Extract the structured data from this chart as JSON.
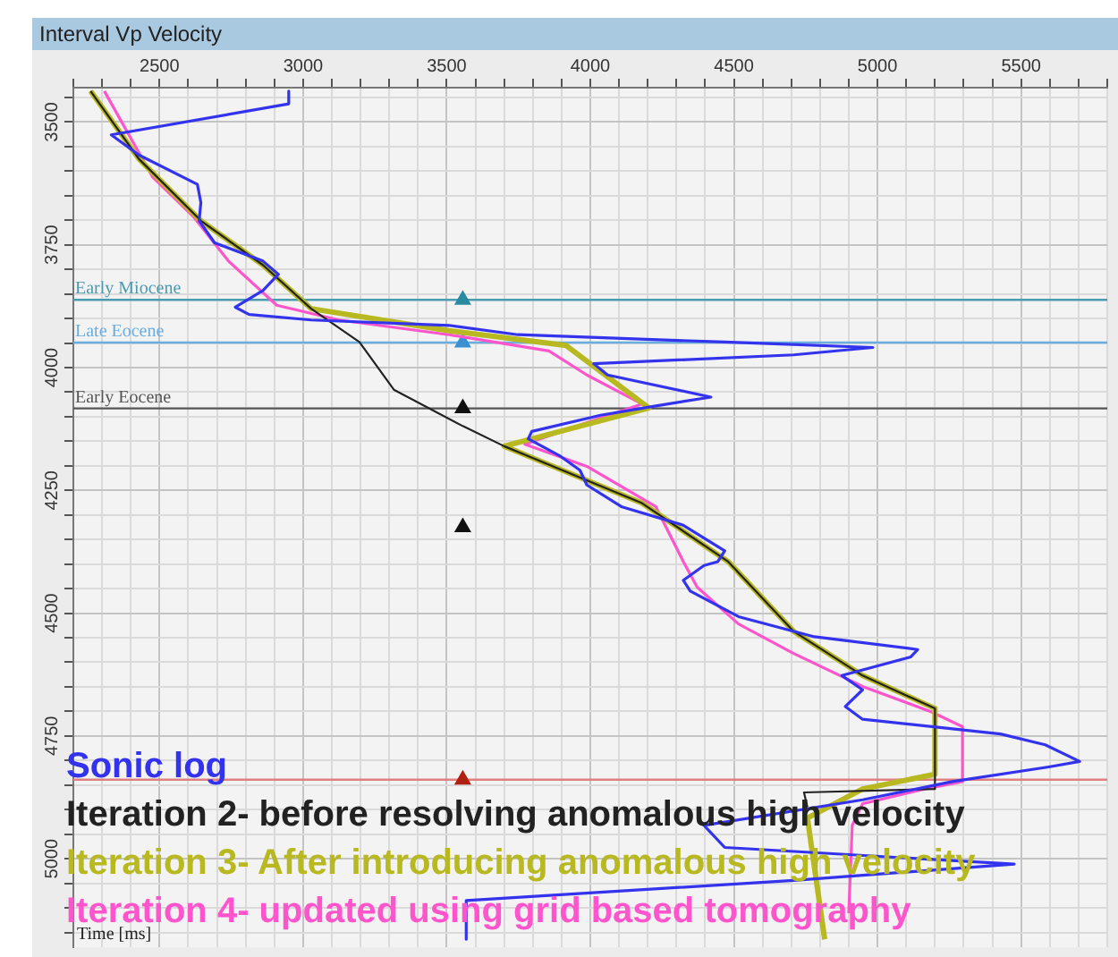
{
  "chart_data": {
    "type": "line",
    "title": "Interval Vp Velocity",
    "ylabel": "Time [ms]",
    "xlim": [
      2200,
      5800
    ],
    "ylim": [
      5180,
      3430
    ],
    "xticks": [
      {
        "value": 2200,
        "label": null
      },
      {
        "value": 2300,
        "label": null
      },
      {
        "value": 2400,
        "label": null
      },
      2500,
      {
        "value": 2600,
        "label": null
      },
      {
        "value": 2700,
        "label": null
      },
      {
        "value": 2800,
        "label": null
      },
      {
        "value": 2900,
        "label": null
      },
      3000,
      {
        "value": 3100,
        "label": null
      },
      {
        "value": 3200,
        "label": null
      },
      {
        "value": 3300,
        "label": null
      },
      {
        "value": 3400,
        "label": null
      },
      3500,
      {
        "value": 3600,
        "label": null
      },
      {
        "value": 3700,
        "label": null
      },
      {
        "value": 3800,
        "label": null
      },
      {
        "value": 3900,
        "label": null
      },
      4000,
      {
        "value": 4100,
        "label": null
      },
      {
        "value": 4200,
        "label": null
      },
      {
        "value": 4300,
        "label": null
      },
      {
        "value": 4400,
        "label": null
      },
      4500,
      {
        "value": 4600,
        "label": null
      },
      {
        "value": 4700,
        "label": null
      },
      {
        "value": 4800,
        "label": null
      },
      {
        "value": 4900,
        "label": null
      },
      5000,
      {
        "value": 5100,
        "label": null
      },
      {
        "value": 5200,
        "label": null
      },
      {
        "value": 5300,
        "label": null
      },
      {
        "value": 5400,
        "label": null
      },
      5500,
      {
        "value": 5600,
        "label": null
      },
      {
        "value": 5700,
        "label": null
      },
      {
        "value": 5800,
        "label": null
      }
    ],
    "yticks": [
      {
        "value": 3450,
        "label": null
      },
      3500,
      {
        "value": 3550,
        "label": null
      },
      {
        "value": 3600,
        "label": null
      },
      {
        "value": 3650,
        "label": null
      },
      {
        "value": 3700,
        "label": null
      },
      3750,
      {
        "value": 3800,
        "label": null
      },
      {
        "value": 3850,
        "label": null
      },
      {
        "value": 3900,
        "label": null
      },
      {
        "value": 3950,
        "label": null
      },
      4000,
      {
        "value": 4050,
        "label": null
      },
      {
        "value": 4100,
        "label": null
      },
      {
        "value": 4150,
        "label": null
      },
      {
        "value": 4200,
        "label": null
      },
      4250,
      {
        "value": 4300,
        "label": null
      },
      {
        "value": 4350,
        "label": null
      },
      {
        "value": 4400,
        "label": null
      },
      {
        "value": 4450,
        "label": null
      },
      4500,
      {
        "value": 4550,
        "label": null
      },
      {
        "value": 4600,
        "label": null
      },
      {
        "value": 4650,
        "label": null
      },
      {
        "value": 4700,
        "label": null
      },
      4750,
      {
        "value": 4800,
        "label": null
      },
      {
        "value": 4850,
        "label": null
      },
      {
        "value": 4900,
        "label": null
      },
      {
        "value": 4950,
        "label": null
      },
      5000,
      {
        "value": 5050,
        "label": null
      },
      {
        "value": 5100,
        "label": null
      },
      {
        "value": 5150,
        "label": null
      }
    ],
    "grid": true,
    "legend": "bottom left",
    "marker": "none",
    "ref_lines": [
      {
        "axis": "y",
        "value": 3862,
        "label": "Early Miocene",
        "color": "#4a9ab0"
      },
      {
        "axis": "y",
        "value": 3949,
        "label": "Late Eocene",
        "color": "#6aaee0"
      },
      {
        "axis": "y",
        "value": 4083,
        "label": "Early Eocene",
        "color": "#555555"
      },
      {
        "axis": "y",
        "value": 4839,
        "color": "#e08080"
      }
    ],
    "series": [
      {
        "name": "Sonic log",
        "color": "#3333ee",
        "x": [
          2950,
          2950,
          2332,
          2428,
          2632,
          2644,
          2638,
          2692,
          2860,
          2914,
          2860,
          2764,
          2812,
          3028,
          3508,
          3748,
          4468,
          4984,
          4708,
          4012,
          4060,
          4420,
          4228,
          4036,
          3796,
          3784,
          3892,
          3964,
          3988,
          4108,
          4324,
          4468,
          4444,
          4396,
          4324,
          4348,
          4516,
          4780,
          5140,
          5116,
          4876,
          4948,
          4888,
          4948,
          5428,
          5584,
          5704,
          5596,
          5260,
          4948,
          4396,
          4468,
          5476,
          4708,
          3568,
          3568
        ],
        "values": [
          3437,
          3463,
          3526,
          3567,
          3627,
          3664,
          3701,
          3746,
          3783,
          3810,
          3843,
          3877,
          3892,
          3903,
          3914,
          3933,
          3948,
          3959,
          3974,
          3992,
          4015,
          4060,
          4078,
          4097,
          4130,
          4145,
          4179,
          4209,
          4239,
          4283,
          4321,
          4373,
          4395,
          4403,
          4433,
          4455,
          4507,
          4548,
          4574,
          4589,
          4627,
          4656,
          4690,
          4716,
          4746,
          4768,
          4802,
          4813,
          4843,
          4880,
          4932,
          4977,
          5011,
          5044,
          5085,
          5164
        ]
      },
      {
        "name": "Iteration 2- before resolving anomalous high velocity",
        "color": "#222222",
        "x": [
          2260,
          2428,
          2644,
          2860,
          3028,
          3196,
          3316,
          3556,
          3700,
          4180,
          4480,
          4708,
          4948,
          5200,
          5200,
          4744,
          4756
        ],
        "values": [
          3437,
          3575,
          3701,
          3791,
          3880,
          3948,
          4045,
          4119,
          4160,
          4276,
          4395,
          4537,
          4627,
          4694,
          4858,
          4865,
          4895
        ]
      },
      {
        "name": "Iteration 3- After introducing anomalous high velocity",
        "color": "#b8b820",
        "x": [
          2260,
          2428,
          2644,
          2860,
          3028,
          3508,
          3916,
          4204,
          3700,
          4180,
          4480,
          4708,
          4948,
          5200,
          5200,
          4948,
          4756,
          4816
        ],
        "values": [
          3437,
          3575,
          3701,
          3791,
          3880,
          3925,
          3955,
          4082,
          4160,
          4276,
          4395,
          4537,
          4627,
          4694,
          4828,
          4858,
          4917,
          5164
        ]
      },
      {
        "name": "Iteration 4- updated using grid based tomography",
        "color": "#ff55cc",
        "x": [
          2308,
          2476,
          2620,
          2740,
          2908,
          3124,
          3508,
          3856,
          3988,
          4180,
          3988,
          3772,
          3988,
          4228,
          4324,
          4372,
          4516,
          4708,
          4948,
          5188,
          5296,
          5296,
          5164,
          4948,
          4912,
          4900
        ],
        "values": [
          3437,
          3612,
          3694,
          3783,
          3873,
          3903,
          3933,
          3966,
          4015,
          4074,
          4112,
          4156,
          4201,
          4283,
          4395,
          4447,
          4522,
          4582,
          4649,
          4701,
          4731,
          4843,
          4858,
          4888,
          4932,
          5111
        ]
      },
      {
        "type": "scatter",
        "marker": "triangle",
        "x": [
          3556,
          3556,
          3556,
          3556,
          3556
        ],
        "values": [
          3862,
          3949,
          4083,
          4325,
          4839
        ],
        "colors": [
          "#2a8aa0",
          "#3a90d0",
          "#111111",
          "#111111",
          "#b02010"
        ]
      }
    ]
  }
}
